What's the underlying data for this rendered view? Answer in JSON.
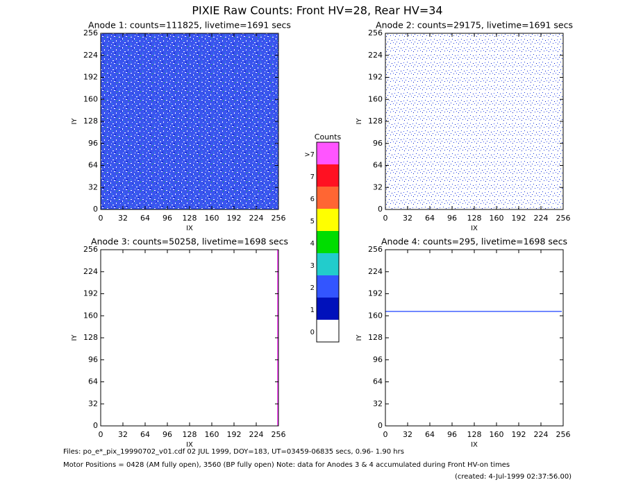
{
  "title": "PIXIE Raw Counts:  Front HV=28, Rear HV=34",
  "chart_data": [
    {
      "type": "heatmap",
      "title": "Anode 1: counts=111825, livetime=1691 secs",
      "xlabel": "IX",
      "ylabel": "IY",
      "xlim": [
        0,
        256
      ],
      "ylim": [
        0,
        256
      ],
      "xticks": [
        0,
        32,
        64,
        96,
        128,
        160,
        192,
        224,
        256
      ],
      "yticks": [
        0,
        32,
        64,
        96,
        128,
        160,
        192,
        224,
        256
      ]
    },
    {
      "type": "heatmap",
      "title": "Anode 2: counts=29175, livetime=1691 secs",
      "xlabel": "IX",
      "ylabel": "IY",
      "xlim": [
        0,
        256
      ],
      "ylim": [
        0,
        256
      ],
      "xticks": [
        0,
        32,
        64,
        96,
        128,
        160,
        192,
        224,
        256
      ],
      "yticks": [
        0,
        32,
        64,
        96,
        128,
        160,
        192,
        224,
        256
      ]
    },
    {
      "type": "heatmap",
      "title": "Anode 3: counts=50258, livetime=1698 secs",
      "xlabel": "IX",
      "ylabel": "IY",
      "xlim": [
        0,
        256
      ],
      "ylim": [
        0,
        256
      ],
      "xticks": [
        0,
        32,
        64,
        96,
        128,
        160,
        192,
        224,
        256
      ],
      "yticks": [
        0,
        32,
        64,
        96,
        128,
        160,
        192,
        224,
        256
      ]
    },
    {
      "type": "heatmap",
      "title": "Anode 4: counts=295, livetime=1698 secs",
      "xlabel": "IX",
      "ylabel": "IY",
      "xlim": [
        0,
        256
      ],
      "ylim": [
        0,
        256
      ],
      "xticks": [
        0,
        32,
        64,
        96,
        128,
        160,
        192,
        224,
        256
      ],
      "yticks": [
        0,
        32,
        64,
        96,
        128,
        160,
        192,
        224,
        256
      ]
    }
  ],
  "colorbar": {
    "title": "Counts",
    "labels": [
      "0",
      "1",
      "2",
      "3",
      "4",
      "5",
      "6",
      "7",
      ">7"
    ],
    "colors": [
      "#ffffff",
      "#0011bb",
      "#3355ff",
      "#22cccc",
      "#00dd00",
      "#ffff00",
      "#ff6633",
      "#ff1122",
      "#ff55ff"
    ]
  },
  "footer": [
    "Files: po_e*_pix_19990702_v01.cdf   02 JUL 1999, DOY=183, UT=03459-06835 secs,  0.96- 1.90 hrs",
    "Motor Positions = 0428 (AM fully open), 3560 (BP fully open)    Note: data for Anodes 3 & 4 accumulated during Front HV-on times",
    "(created:  4-Jul-1999 02:37:56.00)"
  ]
}
